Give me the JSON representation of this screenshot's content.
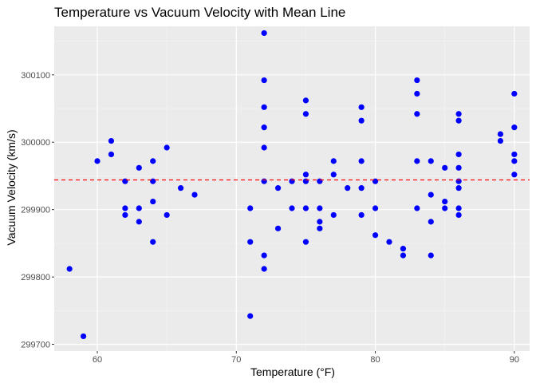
{
  "chart_data": {
    "type": "scatter",
    "title": "Temperature vs Vacuum Velocity with Mean Line",
    "xlabel": "Temperature (°F)",
    "ylabel": "Vacuum Velocity (km/s)",
    "xlim": [
      56.9,
      91.1
    ],
    "ylim": [
      299690,
      300172
    ],
    "xticks": [
      60,
      70,
      80,
      90
    ],
    "yticks": [
      299700,
      299800,
      299900,
      300000,
      300100
    ],
    "xtick_labels": [
      "60",
      "70",
      "80",
      "90"
    ],
    "ytick_labels": [
      "299700",
      "299800",
      "299900",
      "300000",
      "300100"
    ],
    "grid": true,
    "mean_line": {
      "y": 299944,
      "style": "dashed",
      "color": "#ff0000"
    },
    "point_color": "#0000ff",
    "panel_color": "#ebebeb",
    "points": [
      [
        58,
        299812
      ],
      [
        59,
        299712
      ],
      [
        60,
        299972
      ],
      [
        61,
        299982
      ],
      [
        61,
        300002
      ],
      [
        62,
        299942
      ],
      [
        62,
        299902
      ],
      [
        62,
        299892
      ],
      [
        63,
        299962
      ],
      [
        63,
        299902
      ],
      [
        63,
        299882
      ],
      [
        64,
        299972
      ],
      [
        64,
        299942
      ],
      [
        64,
        299912
      ],
      [
        64,
        299852
      ],
      [
        65,
        299992
      ],
      [
        65,
        299892
      ],
      [
        66,
        299932
      ],
      [
        67,
        299922
      ],
      [
        71,
        299902
      ],
      [
        71,
        299852
      ],
      [
        71,
        299742
      ],
      [
        72,
        300162
      ],
      [
        72,
        300092
      ],
      [
        72,
        300052
      ],
      [
        72,
        300022
      ],
      [
        72,
        299992
      ],
      [
        72,
        299942
      ],
      [
        72,
        299832
      ],
      [
        72,
        299812
      ],
      [
        73,
        299932
      ],
      [
        73,
        299872
      ],
      [
        74,
        299942
      ],
      [
        74,
        299902
      ],
      [
        75,
        300062
      ],
      [
        75,
        300042
      ],
      [
        75,
        299952
      ],
      [
        75,
        299942
      ],
      [
        75,
        299902
      ],
      [
        75,
        299852
      ],
      [
        76,
        299942
      ],
      [
        76,
        299902
      ],
      [
        76,
        299882
      ],
      [
        76,
        299872
      ],
      [
        77,
        299972
      ],
      [
        77,
        299952
      ],
      [
        77,
        299892
      ],
      [
        78,
        299932
      ],
      [
        79,
        300052
      ],
      [
        79,
        300032
      ],
      [
        79,
        299972
      ],
      [
        79,
        299932
      ],
      [
        79,
        299892
      ],
      [
        80,
        299942
      ],
      [
        80,
        299902
      ],
      [
        80,
        299862
      ],
      [
        81,
        299852
      ],
      [
        82,
        299842
      ],
      [
        82,
        299832
      ],
      [
        83,
        300092
      ],
      [
        83,
        300072
      ],
      [
        83,
        300042
      ],
      [
        83,
        299972
      ],
      [
        83,
        299902
      ],
      [
        84,
        299972
      ],
      [
        84,
        299922
      ],
      [
        84,
        299882
      ],
      [
        84,
        299832
      ],
      [
        85,
        299962
      ],
      [
        85,
        299912
      ],
      [
        85,
        299902
      ],
      [
        86,
        300042
      ],
      [
        86,
        300032
      ],
      [
        86,
        299982
      ],
      [
        86,
        299962
      ],
      [
        86,
        299942
      ],
      [
        86,
        299932
      ],
      [
        86,
        299902
      ],
      [
        86,
        299892
      ],
      [
        89,
        300012
      ],
      [
        89,
        300002
      ],
      [
        90,
        300072
      ],
      [
        90,
        300022
      ],
      [
        90,
        299982
      ],
      [
        90,
        299972
      ],
      [
        90,
        299952
      ]
    ]
  }
}
